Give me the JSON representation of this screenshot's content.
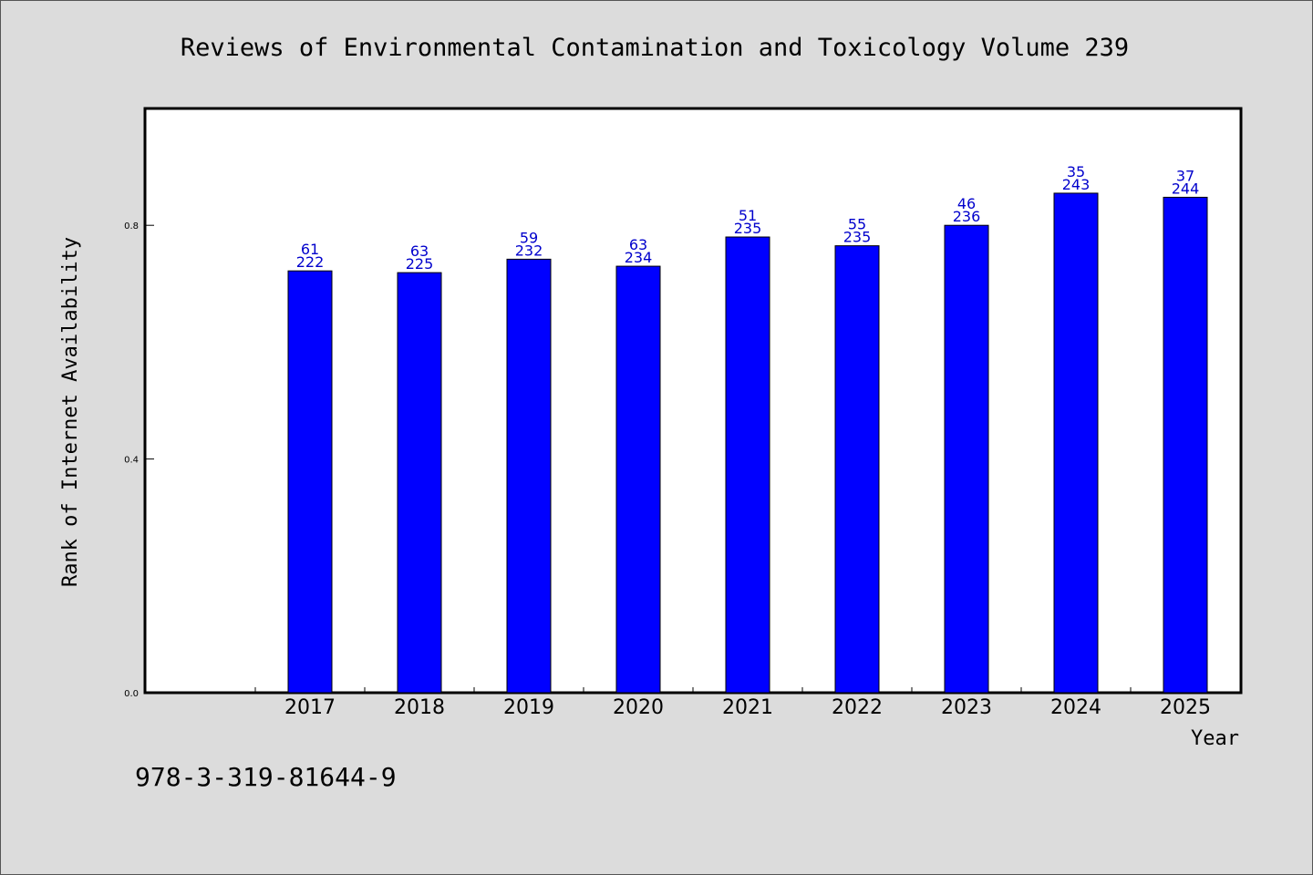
{
  "chart_data": {
    "type": "bar",
    "title": "Reviews of Environmental Contamination and Toxicology Volume 239",
    "xlabel": "Year",
    "ylabel": "Rank of Internet Availability",
    "categories": [
      "2017",
      "2018",
      "2019",
      "2020",
      "2021",
      "2022",
      "2023",
      "2024",
      "2025"
    ],
    "values": [
      0.722,
      0.719,
      0.742,
      0.73,
      0.78,
      0.765,
      0.8,
      0.855,
      0.848
    ],
    "labels_top": [
      "61",
      "63",
      "59",
      "63",
      "51",
      "55",
      "46",
      "35",
      "37"
    ],
    "labels_bottom": [
      "222",
      "225",
      "232",
      "234",
      "235",
      "235",
      "236",
      "243",
      "244"
    ],
    "ylim": [
      0,
      1.0
    ],
    "yticks": [
      "0.0",
      "0.4",
      "0.8"
    ],
    "ytick_values": [
      0.0,
      0.4,
      0.8
    ],
    "bar_color": "#0000ff",
    "label_color": "#0000cc",
    "grid": false
  },
  "footer": {
    "isbn": "978-3-319-81644-9"
  }
}
